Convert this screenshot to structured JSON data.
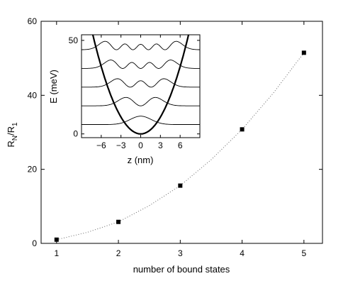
{
  "chart_data": [
    {
      "type": "scatter",
      "xlabel": "number of bound states",
      "ylabel_main": "R",
      "ylabel_sub1": "N",
      "ylabel_sep": "/R",
      "ylabel_sub2": "1",
      "xlim": [
        0.75,
        5.3
      ],
      "ylim": [
        0,
        60
      ],
      "xticks": [
        1,
        2,
        3,
        4,
        5
      ],
      "yticks": [
        0,
        20,
        40,
        60
      ],
      "series": [
        {
          "x": [
            1,
            2,
            3,
            4,
            5
          ],
          "y": [
            1,
            5.8,
            15.6,
            30.8,
            51.5
          ]
        }
      ],
      "fit_curve": {
        "style": "dotted",
        "x": [
          1,
          1.5,
          2,
          2.5,
          3,
          3.5,
          4,
          4.5,
          5
        ],
        "y": [
          1,
          3.0,
          5.8,
          10.2,
          15.6,
          22.6,
          30.8,
          40.5,
          51.5
        ]
      }
    },
    {
      "type": "line",
      "inset": true,
      "xlabel": "z (nm)",
      "ylabel": "E (meV)",
      "xlim": [
        -9,
        9
      ],
      "ylim": [
        -2,
        53
      ],
      "xticks": [
        -6,
        -3,
        0,
        3,
        6
      ],
      "yticks": [
        0,
        50
      ],
      "potential": "harmonic well, E = 1.0 z^2 (meV, z in nm)",
      "levels_meV": [
        5,
        15,
        25,
        35,
        45
      ],
      "wavefunction_amplitude": 4.5,
      "hbar_omega_meV": 10
    }
  ],
  "tick_label_text": {
    "xmain": [
      "1",
      "2",
      "3",
      "4",
      "5"
    ],
    "ymain": [
      "0",
      "20",
      "40",
      "60"
    ],
    "xinset": [
      "−6",
      "−3",
      "0",
      "3",
      "6"
    ],
    "yinset": [
      "0",
      "50"
    ]
  }
}
